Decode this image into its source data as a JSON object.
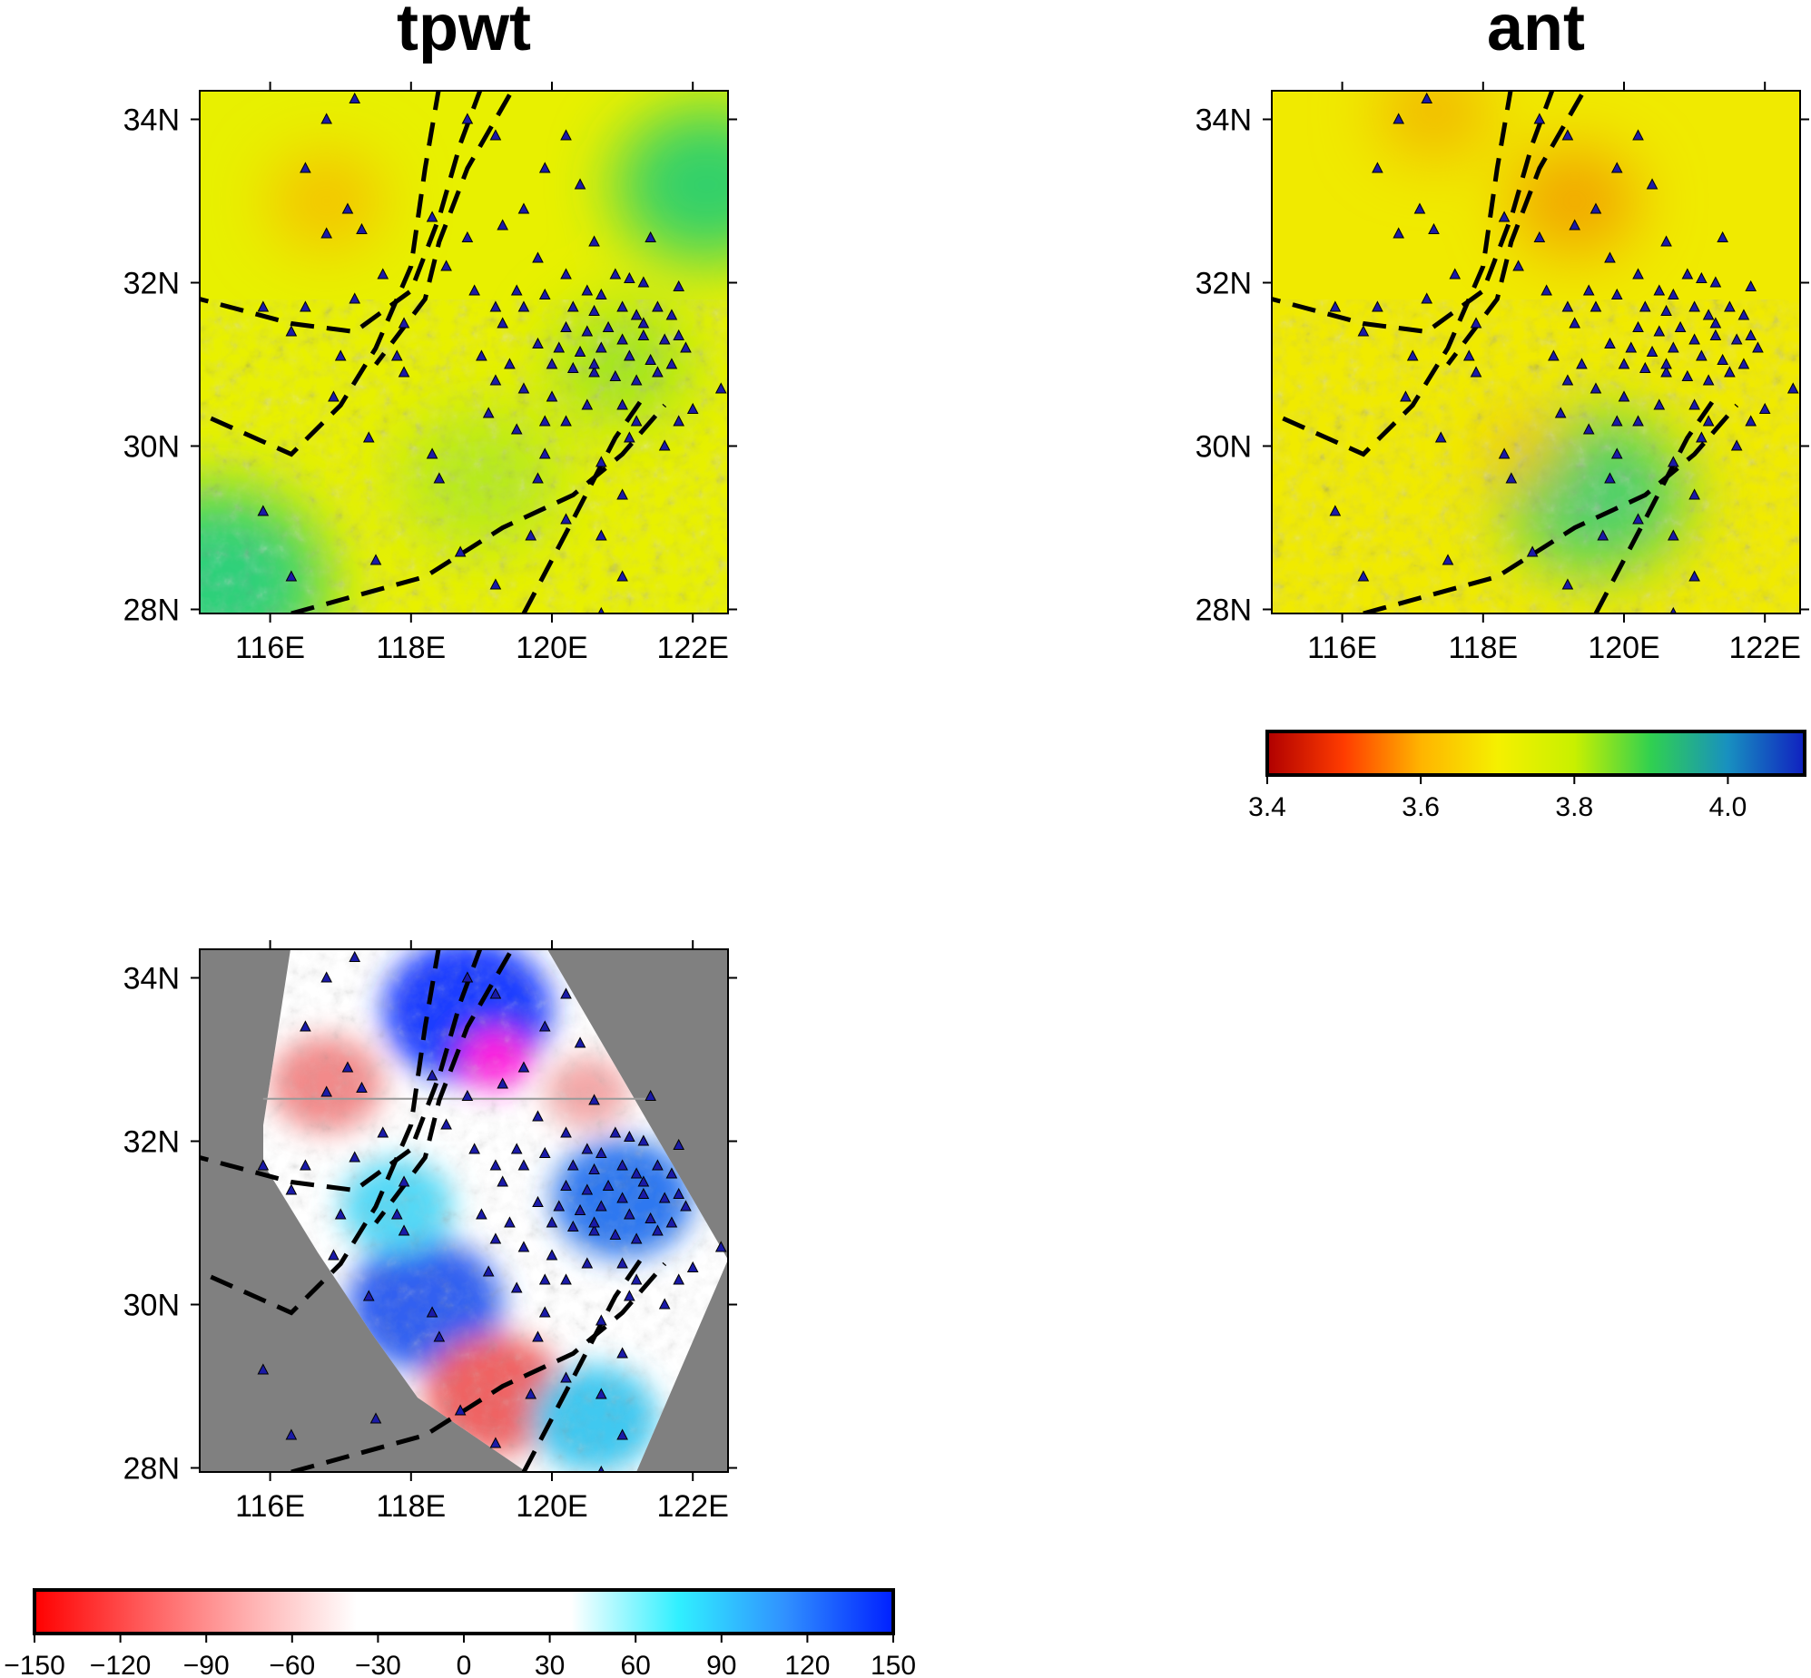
{
  "panels": [
    {
      "id": "tpwt",
      "title": "tpwt",
      "x_ticks": [
        "116E",
        "118E",
        "120E",
        "122E"
      ],
      "y_ticks": [
        "34N",
        "32N",
        "30N",
        "28N"
      ],
      "base_color": "#e8f000",
      "field_blobs": [
        {
          "lon": 122.2,
          "lat": 33.2,
          "r_deg": 1.3,
          "color": "#33d06a"
        },
        {
          "lon": 115.2,
          "lat": 28.3,
          "r_deg": 1.6,
          "color": "#2ed07a"
        },
        {
          "lon": 119.0,
          "lat": 29.6,
          "r_deg": 1.2,
          "color": "#b6ea1a"
        },
        {
          "lon": 121.0,
          "lat": 31.0,
          "r_deg": 1.0,
          "color": "#9fe420"
        },
        {
          "lon": 116.8,
          "lat": 33.0,
          "r_deg": 0.8,
          "color": "#f5c000"
        }
      ]
    },
    {
      "id": "ant",
      "title": "ant",
      "x_ticks": [
        "116E",
        "118E",
        "120E",
        "122E"
      ],
      "y_ticks": [
        "34N",
        "32N",
        "30N",
        "28N"
      ],
      "base_color": "#f0ea00",
      "field_blobs": [
        {
          "lon": 119.3,
          "lat": 33.0,
          "r_deg": 0.9,
          "color": "#f2a400"
        },
        {
          "lon": 117.3,
          "lat": 34.1,
          "r_deg": 0.8,
          "color": "#f2b800"
        },
        {
          "lon": 119.6,
          "lat": 29.4,
          "r_deg": 1.3,
          "color": "#4ed06a"
        },
        {
          "lon": 118.6,
          "lat": 29.9,
          "r_deg": 0.5,
          "color": "#f4b800"
        }
      ]
    },
    {
      "id": "diff",
      "title": "",
      "x_ticks": [
        "116E",
        "118E",
        "120E",
        "122E"
      ],
      "y_ticks": [
        "34N",
        "32N",
        "30N",
        "28N"
      ],
      "mask_color": "#808080",
      "base_color": "#ffffff",
      "field_blobs": [
        {
          "lon": 118.8,
          "lat": 33.6,
          "r_deg": 1.2,
          "color": "#1e3dff"
        },
        {
          "lon": 119.2,
          "lat": 33.0,
          "r_deg": 0.5,
          "color": "#ff22dd"
        },
        {
          "lon": 116.8,
          "lat": 32.7,
          "r_deg": 0.8,
          "color": "#f28a8a"
        },
        {
          "lon": 121.0,
          "lat": 31.3,
          "r_deg": 1.0,
          "color": "#2e78f0"
        },
        {
          "lon": 118.2,
          "lat": 30.0,
          "r_deg": 1.1,
          "color": "#3360f0"
        },
        {
          "lon": 119.2,
          "lat": 28.9,
          "r_deg": 1.0,
          "color": "#ef6464"
        },
        {
          "lon": 120.6,
          "lat": 28.6,
          "r_deg": 0.9,
          "color": "#41c8f0"
        },
        {
          "lon": 117.8,
          "lat": 31.2,
          "r_deg": 0.8,
          "color": "#55d8f5"
        },
        {
          "lon": 120.5,
          "lat": 32.6,
          "r_deg": 0.6,
          "color": "#f3a7a7"
        }
      ],
      "profile_lat": 32.52,
      "profile_lon": [
        115.9,
        121.4
      ]
    }
  ],
  "colorbars": [
    {
      "id": "velocity",
      "tick_labels": [
        "3.4",
        "3.6",
        "3.8",
        "4.0"
      ],
      "tick_values": [
        3.4,
        3.6,
        3.8,
        4.0
      ],
      "range": [
        3.4,
        4.1
      ],
      "stops": [
        "#b00000",
        "#ff3c00",
        "#ffb400",
        "#f5f000",
        "#c8f000",
        "#30d050",
        "#1890c0",
        "#1020c0"
      ]
    },
    {
      "id": "difference",
      "tick_labels": [
        "−150",
        "−120",
        "−90",
        "−60",
        "−30",
        "0",
        "30",
        "60",
        "90",
        "120",
        "150"
      ],
      "tick_values": [
        -150,
        -120,
        -90,
        -60,
        -30,
        0,
        30,
        60,
        90,
        120,
        150
      ],
      "range": [
        -150,
        150
      ],
      "stops": [
        "#ff0000",
        "#ff5a5a",
        "#ffb0b0",
        "#ffffff",
        "#ffffff",
        "#ffffff",
        "#30f0ff",
        "#3090ff",
        "#0020ff"
      ]
    }
  ],
  "map_extent": {
    "lon": [
      115.0,
      122.5
    ],
    "lat": [
      27.95,
      34.35
    ]
  },
  "fault_lines": [
    [
      [
        118.4,
        34.4
      ],
      [
        118.2,
        33.4
      ],
      [
        118.0,
        32.2
      ],
      [
        117.5,
        31.2
      ],
      [
        117.0,
        30.5
      ],
      [
        116.3,
        29.9
      ],
      [
        115.0,
        30.4
      ]
    ],
    [
      [
        119.0,
        34.4
      ],
      [
        118.7,
        33.7
      ],
      [
        118.4,
        32.8
      ],
      [
        118.0,
        31.9
      ],
      [
        117.2,
        31.4
      ],
      [
        116.3,
        31.5
      ],
      [
        115.0,
        31.8
      ]
    ],
    [
      [
        119.4,
        34.3
      ],
      [
        118.8,
        33.4
      ],
      [
        118.4,
        32.5
      ],
      [
        118.2,
        31.8
      ],
      [
        117.5,
        31.0
      ]
    ],
    [
      [
        116.3,
        27.95
      ],
      [
        118.2,
        28.4
      ],
      [
        119.3,
        29.0
      ],
      [
        120.3,
        29.4
      ],
      [
        121.0,
        29.9
      ],
      [
        121.6,
        30.5
      ]
    ],
    [
      [
        119.6,
        27.95
      ],
      [
        120.3,
        29.1
      ],
      [
        120.9,
        30.1
      ],
      [
        121.3,
        30.6
      ]
    ]
  ],
  "stations": [
    [
      117.2,
      34.25
    ],
    [
      116.8,
      34.0
    ],
    [
      118.8,
      34.0
    ],
    [
      119.2,
      33.8
    ],
    [
      120.2,
      33.8
    ],
    [
      116.5,
      33.4
    ],
    [
      119.9,
      33.4
    ],
    [
      120.4,
      33.2
    ],
    [
      117.1,
      32.9
    ],
    [
      119.6,
      32.9
    ],
    [
      117.3,
      32.65
    ],
    [
      118.3,
      32.8
    ],
    [
      119.3,
      32.7
    ],
    [
      116.8,
      32.6
    ],
    [
      118.8,
      32.55
    ],
    [
      120.6,
      32.5
    ],
    [
      121.4,
      32.55
    ],
    [
      119.8,
      32.3
    ],
    [
      120.2,
      32.1
    ],
    [
      120.9,
      32.1
    ],
    [
      121.1,
      32.05
    ],
    [
      121.3,
      32.0
    ],
    [
      121.8,
      31.95
    ],
    [
      118.9,
      31.9
    ],
    [
      119.5,
      31.9
    ],
    [
      119.9,
      31.85
    ],
    [
      120.5,
      31.9
    ],
    [
      120.7,
      31.85
    ],
    [
      116.5,
      31.7
    ],
    [
      115.9,
      31.7
    ],
    [
      117.2,
      31.8
    ],
    [
      119.2,
      31.7
    ],
    [
      119.6,
      31.7
    ],
    [
      120.3,
      31.7
    ],
    [
      120.6,
      31.65
    ],
    [
      121.0,
      31.7
    ],
    [
      121.2,
      31.6
    ],
    [
      121.5,
      31.7
    ],
    [
      121.7,
      31.6
    ],
    [
      116.3,
      31.4
    ],
    [
      117.9,
      31.5
    ],
    [
      119.3,
      31.5
    ],
    [
      120.2,
      31.45
    ],
    [
      120.5,
      31.4
    ],
    [
      120.8,
      31.45
    ],
    [
      121.0,
      31.3
    ],
    [
      121.3,
      31.35
    ],
    [
      121.6,
      31.3
    ],
    [
      121.8,
      31.35
    ],
    [
      119.8,
      31.25
    ],
    [
      120.1,
      31.2
    ],
    [
      120.4,
      31.15
    ],
    [
      120.7,
      31.2
    ],
    [
      121.1,
      31.1
    ],
    [
      121.4,
      31.05
    ],
    [
      121.7,
      31.0
    ],
    [
      117.0,
      31.1
    ],
    [
      117.9,
      30.9
    ],
    [
      119.0,
      31.1
    ],
    [
      119.4,
      31.0
    ],
    [
      120.3,
      30.95
    ],
    [
      120.6,
      30.9
    ],
    [
      120.9,
      30.85
    ],
    [
      121.2,
      30.8
    ],
    [
      121.5,
      30.9
    ],
    [
      119.6,
      30.7
    ],
    [
      120.0,
      30.6
    ],
    [
      120.5,
      30.5
    ],
    [
      121.0,
      30.5
    ],
    [
      121.8,
      30.3
    ],
    [
      122.4,
      30.7
    ],
    [
      122.0,
      30.45
    ],
    [
      116.9,
      30.6
    ],
    [
      117.4,
      30.1
    ],
    [
      119.1,
      30.4
    ],
    [
      119.5,
      30.2
    ],
    [
      120.2,
      30.3
    ],
    [
      121.1,
      30.1
    ],
    [
      121.6,
      30.0
    ],
    [
      118.3,
      29.9
    ],
    [
      119.8,
      29.6
    ],
    [
      120.7,
      29.8
    ],
    [
      118.4,
      29.6
    ],
    [
      121.0,
      29.4
    ],
    [
      120.2,
      29.1
    ],
    [
      120.7,
      28.9
    ],
    [
      118.7,
      28.7
    ],
    [
      119.7,
      28.9
    ],
    [
      117.5,
      28.6
    ],
    [
      121.0,
      28.4
    ],
    [
      119.2,
      28.3
    ],
    [
      116.3,
      28.4
    ],
    [
      120.7,
      27.95
    ],
    [
      115.9,
      29.2
    ],
    [
      117.8,
      31.1
    ],
    [
      119.2,
      30.8
    ],
    [
      120.0,
      31.0
    ],
    [
      121.3,
      31.5
    ],
    [
      120.6,
      31.0
    ],
    [
      119.9,
      30.3
    ],
    [
      121.2,
      30.3
    ],
    [
      121.9,
      31.2
    ],
    [
      118.5,
      32.2
    ],
    [
      117.6,
      32.1
    ],
    [
      119.9,
      29.9
    ]
  ]
}
